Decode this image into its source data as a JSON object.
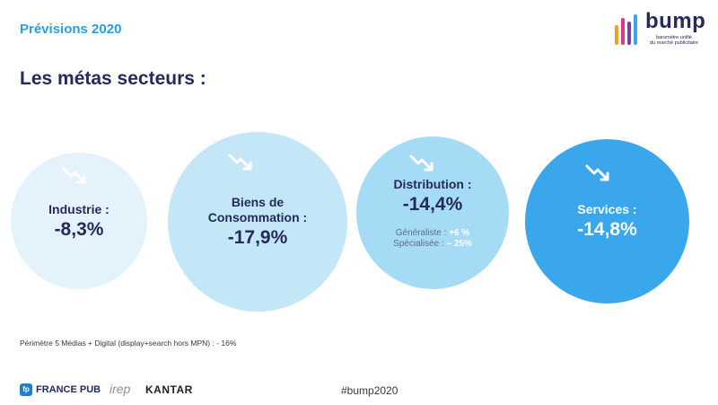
{
  "header": {
    "kicker": "Prévisions 2020",
    "title": "Les métas secteurs :"
  },
  "logo": {
    "word": "bump",
    "tag1": "baromètre unifié",
    "tag2": "du marché publicitaire",
    "bar_colors": [
      "#f1a11c",
      "#e8338a",
      "#7b3f98",
      "#3aa7ec"
    ]
  },
  "sectors": [
    {
      "label_line1": "Industrie :",
      "label_line2": "",
      "value": "-8,3%",
      "arrow_icon": "trend-down-icon"
    },
    {
      "label_line1": "Biens de",
      "label_line2": "Consommation :",
      "value": "-17,9%",
      "arrow_icon": "trend-down-icon"
    },
    {
      "label_line1": "Distribution :",
      "label_line2": "",
      "value": "-14,4%",
      "arrow_icon": "trend-down-icon",
      "sub": [
        {
          "label": "Généraliste : ",
          "value": "+6 %"
        },
        {
          "label": "Spécialisée : ",
          "value": "– 25%"
        }
      ]
    },
    {
      "label_line1": "Services :",
      "label_line2": "",
      "value": "-14,8%",
      "arrow_icon": "trend-down-icon"
    }
  ],
  "note": "Périmètre 5 Médias + Digital (display+search hors MPN) : - 16%",
  "footer": {
    "hashtag": "#bump2020",
    "francepub_badge": "fp",
    "francepub": "FRANCE PUB",
    "irep": "irep",
    "kantar": "KANTAR"
  },
  "colors": {
    "navy": "#242a5a",
    "accent": "#2aa0e0"
  }
}
